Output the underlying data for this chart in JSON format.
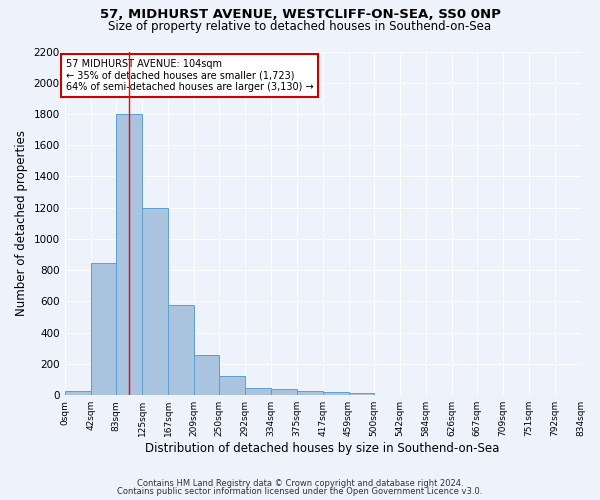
{
  "title1": "57, MIDHURST AVENUE, WESTCLIFF-ON-SEA, SS0 0NP",
  "title2": "Size of property relative to detached houses in Southend-on-Sea",
  "xlabel": "Distribution of detached houses by size in Southend-on-Sea",
  "ylabel": "Number of detached properties",
  "footnote1": "Contains HM Land Registry data © Crown copyright and database right 2024.",
  "footnote2": "Contains public sector information licensed under the Open Government Licence v3.0.",
  "bar_edges": [
    0,
    42,
    83,
    125,
    167,
    209,
    250,
    292,
    334,
    375,
    417,
    459,
    500,
    542,
    584,
    626,
    667,
    709,
    751,
    792,
    834
  ],
  "bar_heights": [
    25,
    848,
    1800,
    1200,
    580,
    255,
    120,
    45,
    40,
    30,
    18,
    12,
    0,
    0,
    0,
    0,
    0,
    0,
    0,
    0
  ],
  "bar_color": "#aac4e0",
  "bar_edge_color": "#5a9fd4",
  "tick_labels": [
    "0sqm",
    "42sqm",
    "83sqm",
    "125sqm",
    "167sqm",
    "209sqm",
    "250sqm",
    "292sqm",
    "334sqm",
    "375sqm",
    "417sqm",
    "459sqm",
    "500sqm",
    "542sqm",
    "584sqm",
    "626sqm",
    "667sqm",
    "709sqm",
    "751sqm",
    "792sqm",
    "834sqm"
  ],
  "ylim": [
    0,
    2200
  ],
  "yticks": [
    0,
    200,
    400,
    600,
    800,
    1000,
    1200,
    1400,
    1600,
    1800,
    2000,
    2200
  ],
  "red_line_x": 104,
  "annotation_title": "57 MIDHURST AVENUE: 104sqm",
  "annotation_line1": "← 35% of detached houses are smaller (1,723)",
  "annotation_line2": "64% of semi-detached houses are larger (3,130) →",
  "annotation_box_color": "#ffffff",
  "annotation_box_edge": "#cc0000",
  "bg_color": "#eef2fa"
}
